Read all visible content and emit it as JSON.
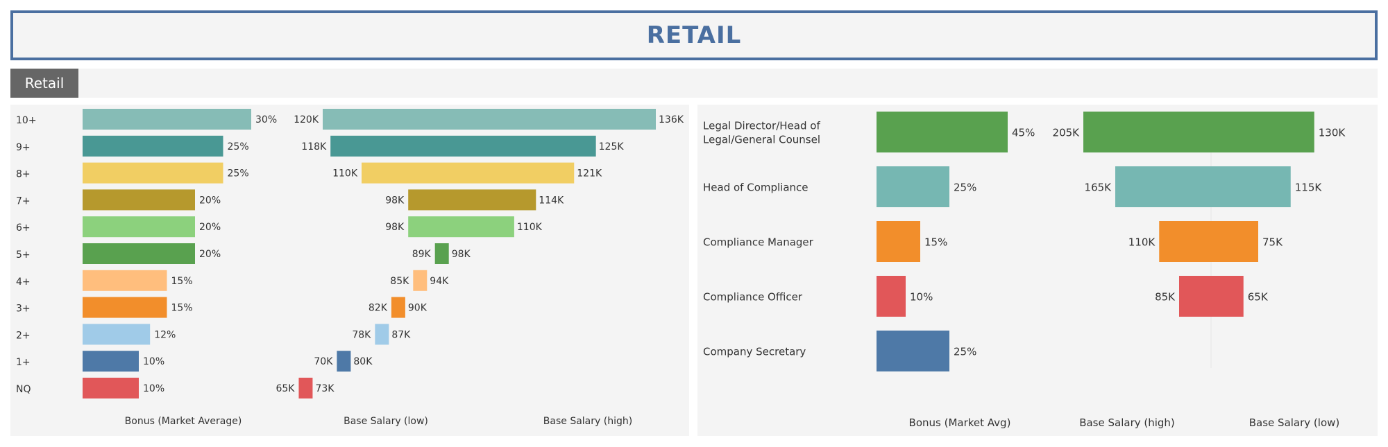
{
  "header": {
    "title": "RETAIL"
  },
  "filter": {
    "label": "Retail"
  },
  "chart_data": [
    {
      "type": "bar",
      "orientation": "horizontal",
      "categories": [
        "10+",
        "9+",
        "8+",
        "7+",
        "6+",
        "5+",
        "4+",
        "3+",
        "2+",
        "1+",
        "NQ"
      ],
      "colors": [
        "#86bcb6",
        "#499894",
        "#f1ce63",
        "#b6992d",
        "#8cd17d",
        "#59a14f",
        "#ffbe7d",
        "#f28e2b",
        "#a0cbe8",
        "#4e79a7",
        "#e15759"
      ],
      "series": [
        {
          "name": "Bonus (Market Average)",
          "values": [
            30,
            25,
            25,
            20,
            20,
            20,
            15,
            15,
            12,
            10,
            10
          ],
          "labels": [
            "30%",
            "25%",
            "25%",
            "20%",
            "20%",
            "20%",
            "15%",
            "15%",
            "12%",
            "10%",
            "10%"
          ]
        },
        {
          "name": "Base Salary (low)",
          "values": [
            120,
            118,
            110,
            98,
            98,
            89,
            85,
            82,
            78,
            70,
            65
          ],
          "labels": [
            "120K",
            "118K",
            "110K",
            "98K",
            "98K",
            "89K",
            "85K",
            "82K",
            "78K",
            "70K",
            "65K"
          ]
        },
        {
          "name": "Base Salary (high)",
          "values": [
            136,
            125,
            121,
            114,
            110,
            98,
            94,
            90,
            87,
            80,
            73
          ],
          "labels": [
            "136K",
            "125K",
            "121K",
            "114K",
            "110K",
            "98K",
            "94K",
            "90K",
            "87K",
            "80K",
            "73K"
          ]
        }
      ],
      "xlabels": [
        "Bonus (Market Average)",
        "Base Salary (low)",
        "Base Salary (high)"
      ]
    },
    {
      "type": "bar",
      "orientation": "horizontal",
      "categories": [
        [
          "Legal Director/Head of",
          "Legal/General Counsel"
        ],
        [
          "Head of Compliance"
        ],
        [
          "Compliance Manager"
        ],
        [
          "Compliance Officer"
        ],
        [
          "Company Secretary"
        ]
      ],
      "colors": [
        "#59a14f",
        "#76b7b2",
        "#f28e2b",
        "#e15759",
        "#4e79a7"
      ],
      "series": [
        {
          "name": "Bonus (Market Avg)",
          "values": [
            45,
            25,
            15,
            10,
            25
          ],
          "labels": [
            "45%",
            "25%",
            "15%",
            "10%",
            "25%"
          ]
        },
        {
          "name": "Base Salary (high)",
          "values": [
            205,
            165,
            110,
            85,
            null
          ],
          "labels": [
            "205K",
            "165K",
            "110K",
            "85K",
            ""
          ]
        },
        {
          "name": "Base Salary (low)",
          "values": [
            130,
            115,
            75,
            65,
            null
          ],
          "labels": [
            "130K",
            "115K",
            "75K",
            "65K",
            ""
          ]
        }
      ],
      "xlabels": [
        "Bonus (Market Avg)",
        "Base Salary (high)",
        "Base Salary (low)"
      ]
    }
  ]
}
